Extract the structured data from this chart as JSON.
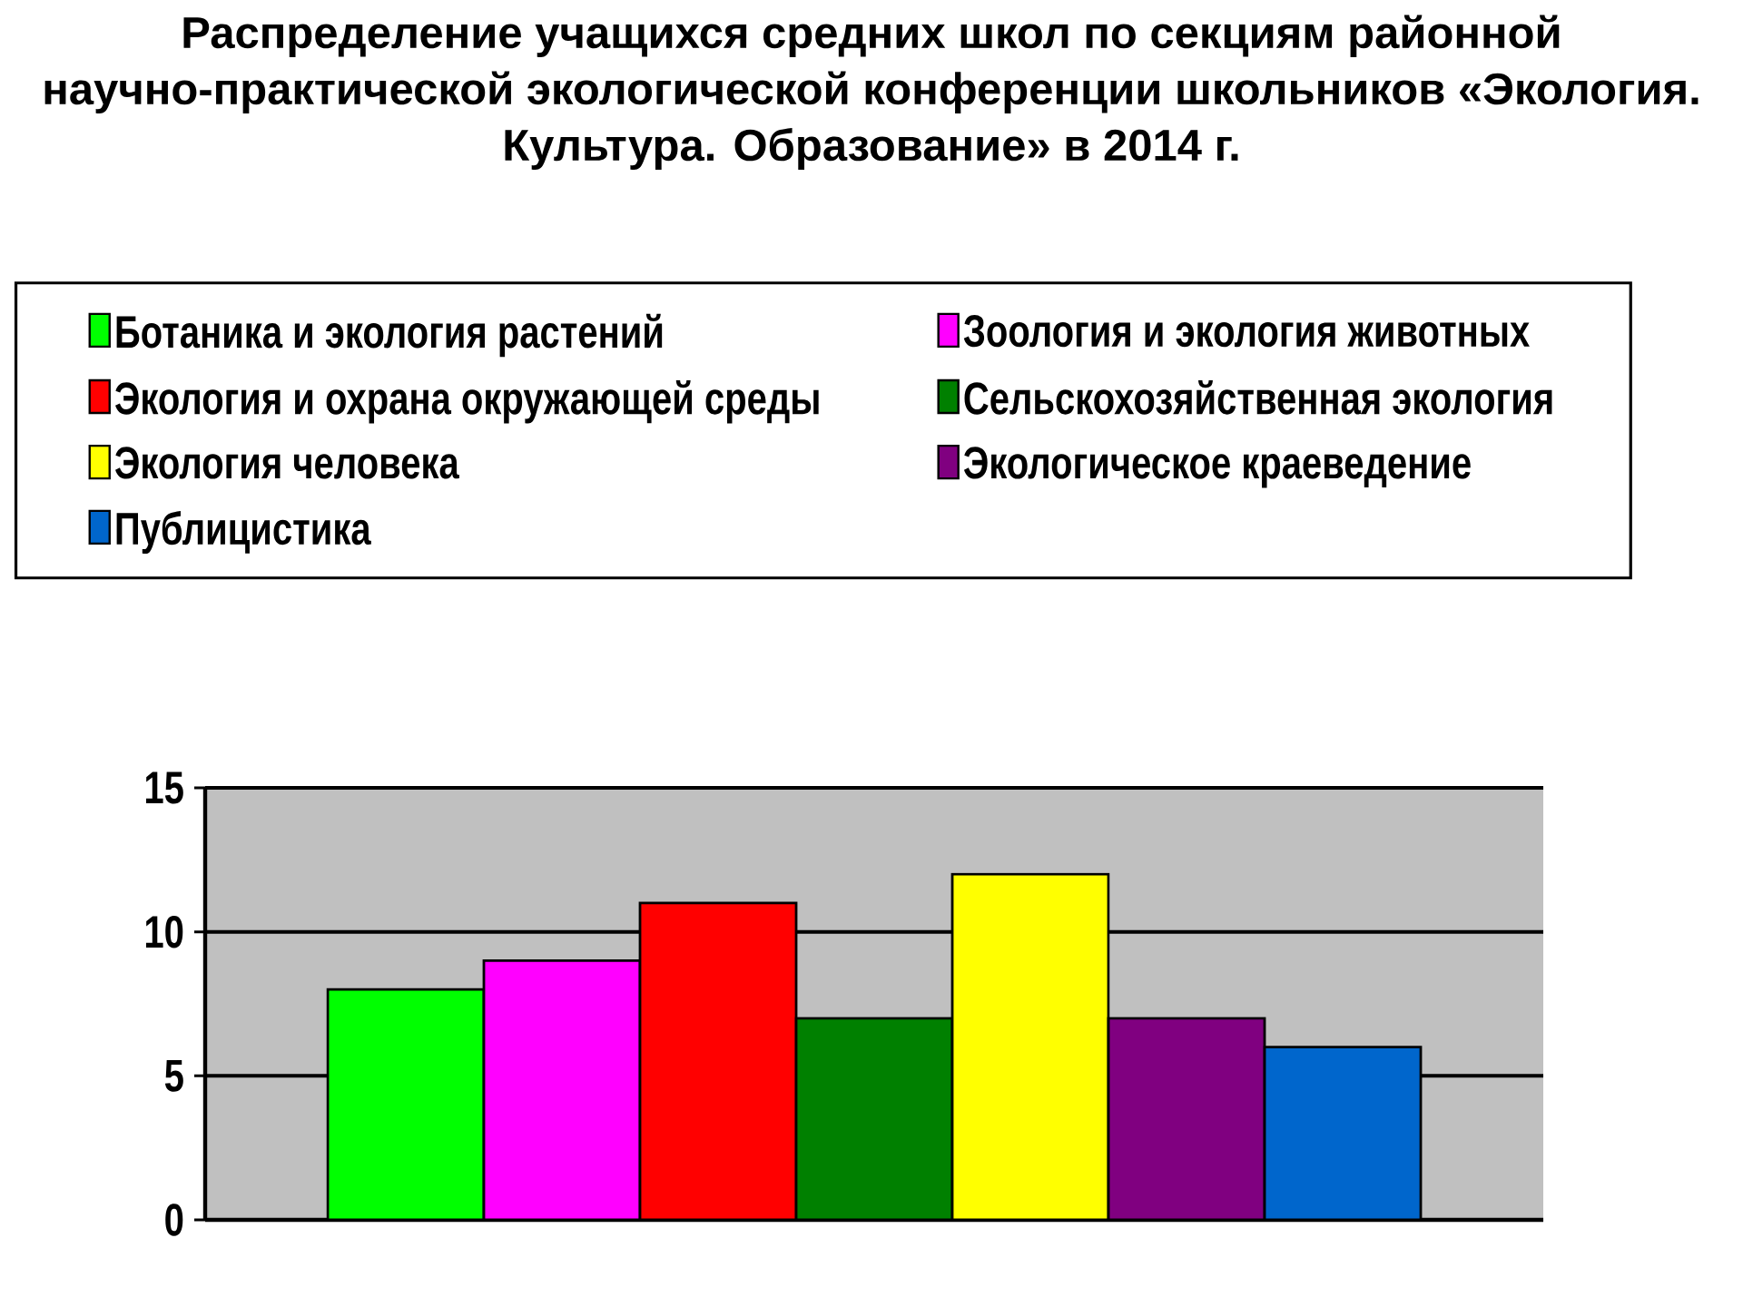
{
  "chart_data": {
    "type": "bar",
    "title": "Распределение учащихся средних школ по секциям районной научно-практической экологической конференции школьников «Экология. Культура. Образование» в 2014 г.",
    "categories": [
      null
    ],
    "series": [
      {
        "name": "Ботаника и экология растений",
        "color": "#00ff00",
        "values": [
          8
        ]
      },
      {
        "name": "Зоология и экология животных",
        "color": "#ff00ff",
        "values": [
          9
        ]
      },
      {
        "name": "Экология и охрана окружающей среды",
        "color": "#ff0000",
        "values": [
          11
        ]
      },
      {
        "name": "Сельскохозяйственная экология",
        "color": "#008000",
        "values": [
          7
        ]
      },
      {
        "name": "Экология человека",
        "color": "#ffff00",
        "values": [
          12
        ]
      },
      {
        "name": "Экологическое краеведение",
        "color": "#800080",
        "values": [
          7
        ]
      },
      {
        "name": "Публицистика",
        "color": "#0066cc",
        "values": [
          6
        ]
      }
    ],
    "ylim": [
      0,
      15
    ],
    "yticks": [
      0,
      5,
      10,
      15
    ],
    "grid": "y",
    "legend": "top",
    "tick_labels": "y"
  }
}
